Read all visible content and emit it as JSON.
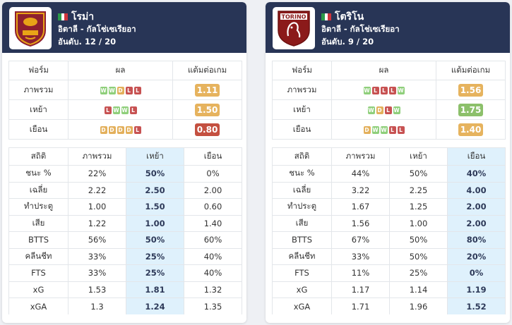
{
  "colors": {
    "W": "#8fcf7b",
    "D": "#e3b05c",
    "L": "#c75252",
    "ppg_green": "#8cc06a",
    "ppg_orange": "#e6b35e",
    "ppg_red": "#c45040",
    "header": "#283556",
    "highlight": "#dff1fc"
  },
  "form_headers": [
    "ฟอร์ม",
    "ผล",
    "แต้มต่อเกม"
  ],
  "stats_headers": [
    "สถิติ",
    "ภาพรวม",
    "เหย้า",
    "เยือน"
  ],
  "teams": [
    {
      "name": "โรม่า",
      "flag": "italy-flag-icon",
      "league": "อิตาลี - กัลโช่เซเรียอา",
      "rank": "อันดับ. 12 / 20",
      "highlight_col": 2,
      "form_rows": [
        {
          "label": "ภาพรวม",
          "results": [
            "W",
            "W",
            "D",
            "L",
            "L"
          ],
          "ppg": "1.11",
          "ppg_color": "ppg_orange"
        },
        {
          "label": "เหย้า",
          "results": [
            "L",
            "W",
            "W",
            "L"
          ],
          "ppg": "1.50",
          "ppg_color": "ppg_orange"
        },
        {
          "label": "เยือน",
          "results": [
            "D",
            "D",
            "D",
            "D",
            "L"
          ],
          "ppg": "0.80",
          "ppg_color": "ppg_red"
        }
      ],
      "stats_rows": [
        [
          "ชนะ %",
          "22%",
          "50%",
          "0%"
        ],
        [
          "เฉลี่ย",
          "2.22",
          "2.50",
          "2.00"
        ],
        [
          "ทำประตู",
          "1.00",
          "1.50",
          "0.60"
        ],
        [
          "เสีย",
          "1.22",
          "1.00",
          "1.40"
        ],
        [
          "BTTS",
          "56%",
          "50%",
          "60%"
        ],
        [
          "คลีนชีท",
          "33%",
          "25%",
          "40%"
        ],
        [
          "FTS",
          "33%",
          "25%",
          "40%"
        ],
        [
          "xG",
          "1.53",
          "1.81",
          "1.32"
        ],
        [
          "xGA",
          "1.3",
          "1.24",
          "1.35"
        ]
      ]
    },
    {
      "name": "โตริโน",
      "flag": "italy-flag-icon",
      "league": "อิตาลี - กัลโช่เซเรียอา",
      "rank": "อันดับ. 9 / 20",
      "highlight_col": 3,
      "form_rows": [
        {
          "label": "ภาพรวม",
          "results": [
            "W",
            "L",
            "L",
            "L",
            "W"
          ],
          "ppg": "1.56",
          "ppg_color": "ppg_orange"
        },
        {
          "label": "เหย้า",
          "results": [
            "W",
            "D",
            "L",
            "W"
          ],
          "ppg": "1.75",
          "ppg_color": "ppg_green"
        },
        {
          "label": "เยือน",
          "results": [
            "D",
            "W",
            "W",
            "L",
            "L"
          ],
          "ppg": "1.40",
          "ppg_color": "ppg_orange"
        }
      ],
      "stats_rows": [
        [
          "ชนะ %",
          "44%",
          "50%",
          "40%"
        ],
        [
          "เฉลี่ย",
          "3.22",
          "2.25",
          "4.00"
        ],
        [
          "ทำประตู",
          "1.67",
          "1.25",
          "2.00"
        ],
        [
          "เสีย",
          "1.56",
          "1.00",
          "2.00"
        ],
        [
          "BTTS",
          "67%",
          "50%",
          "80%"
        ],
        [
          "คลีนชีท",
          "33%",
          "50%",
          "20%"
        ],
        [
          "FTS",
          "11%",
          "25%",
          "0%"
        ],
        [
          "xG",
          "1.17",
          "1.14",
          "1.19"
        ],
        [
          "xGA",
          "1.71",
          "1.96",
          "1.52"
        ]
      ]
    }
  ]
}
